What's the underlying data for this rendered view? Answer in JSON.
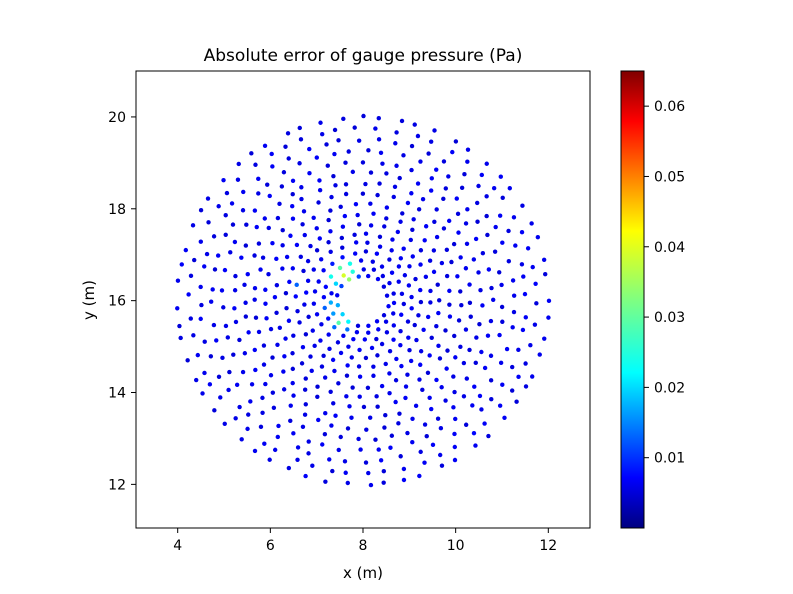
{
  "chart_data": {
    "type": "scatter",
    "title": "Absolute error of gauge pressure (Pa)",
    "xlabel": "x (m)",
    "ylabel": "y (m)",
    "xlim": [
      3.1,
      12.9
    ],
    "ylim": [
      11.05,
      21.0
    ],
    "xticks": [
      "4",
      "6",
      "8",
      "10",
      "12"
    ],
    "yticks": [
      "12",
      "14",
      "16",
      "18",
      "20"
    ],
    "xtick_values": [
      4,
      6,
      8,
      10,
      12
    ],
    "ytick_values": [
      12,
      14,
      16,
      18,
      20
    ],
    "colormap": "jet",
    "color_range": [
      0.0,
      0.065
    ],
    "colorbar_ticks": [
      "0.01",
      "0.02",
      "0.03",
      "0.04",
      "0.05",
      "0.06"
    ],
    "colorbar_tick_values": [
      0.01,
      0.02,
      0.03,
      0.04,
      0.05,
      0.06
    ],
    "grid": false,
    "domain": {
      "center": [
        8.0,
        16.0
      ],
      "inner_radius": 0.55,
      "outer_radius": 4.0
    },
    "error_hotspots": [
      {
        "x": 7.55,
        "y": 16.62,
        "value": 0.035
      },
      {
        "x": 7.65,
        "y": 16.55,
        "value": 0.04
      },
      {
        "x": 7.4,
        "y": 16.5,
        "value": 0.028
      },
      {
        "x": 7.55,
        "y": 15.55,
        "value": 0.032
      },
      {
        "x": 7.35,
        "y": 15.85,
        "value": 0.022
      },
      {
        "x": 7.7,
        "y": 16.7,
        "value": 0.03
      },
      {
        "x": 6.6,
        "y": 16.3,
        "value": 0.012
      },
      {
        "x": 10.2,
        "y": 13.0,
        "value": 0.015
      }
    ],
    "background_error": 0.003
  }
}
